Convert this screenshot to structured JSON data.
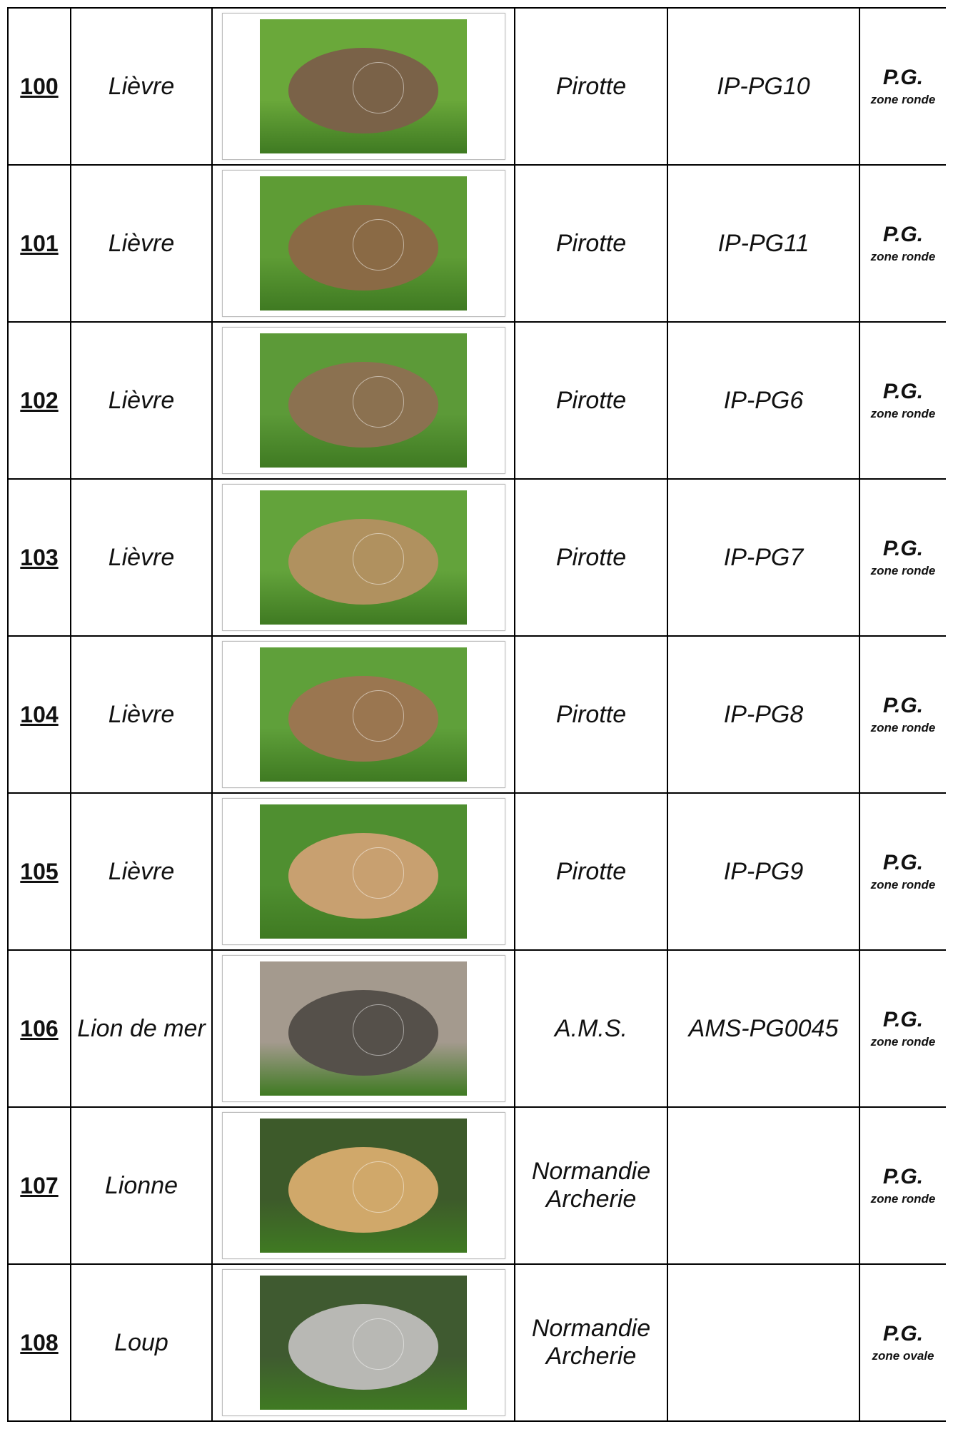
{
  "table": {
    "rows": [
      {
        "number": "100",
        "species": "Lièvre",
        "maker": "Pirotte",
        "reference": "IP-PG10",
        "zone": "P.G.",
        "zone_type": "zone ronde"
      },
      {
        "number": "101",
        "species": "Lièvre",
        "maker": "Pirotte",
        "reference": "IP-PG11",
        "zone": "P.G.",
        "zone_type": "zone ronde"
      },
      {
        "number": "102",
        "species": "Lièvre",
        "maker": "Pirotte",
        "reference": "IP-PG6",
        "zone": "P.G.",
        "zone_type": "zone ronde"
      },
      {
        "number": "103",
        "species": "Lièvre",
        "maker": "Pirotte",
        "reference": "IP-PG7",
        "zone": "P.G.",
        "zone_type": "zone ronde"
      },
      {
        "number": "104",
        "species": "Lièvre",
        "maker": "Pirotte",
        "reference": "IP-PG8",
        "zone": "P.G.",
        "zone_type": "zone ronde"
      },
      {
        "number": "105",
        "species": "Lièvre",
        "maker": "Pirotte",
        "reference": "IP-PG9",
        "zone": "P.G.",
        "zone_type": "zone ronde"
      },
      {
        "number": "106",
        "species": "Lion de mer",
        "maker": "A.M.S.",
        "reference": "AMS-PG0045",
        "zone": "P.G.",
        "zone_type": "zone ronde"
      },
      {
        "number": "107",
        "species": "Lionne",
        "maker": "Normandie Archerie",
        "zone": "P.G.",
        "zone_type": "zone ronde"
      },
      {
        "number": "108",
        "species": "Loup",
        "maker": "Normandie Archerie",
        "zone": "P.G.",
        "zone_type": "zone ovale"
      }
    ]
  }
}
